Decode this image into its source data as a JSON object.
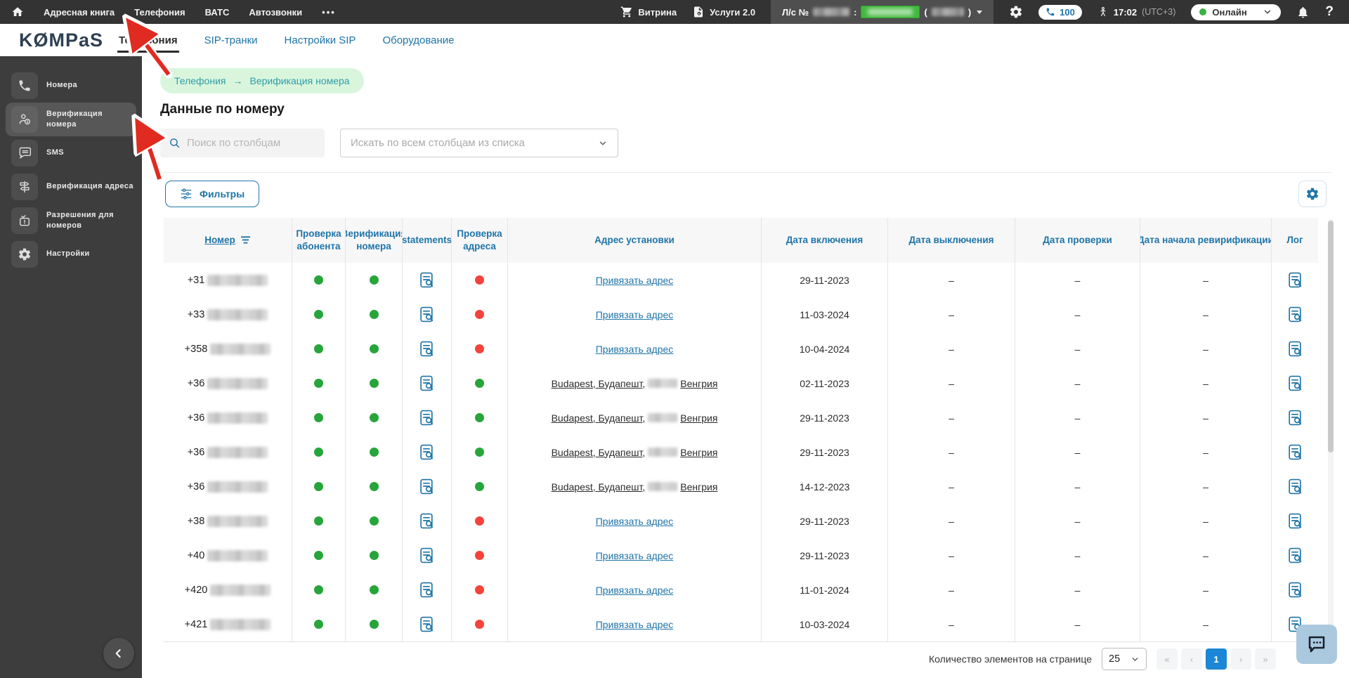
{
  "topbar": {
    "nav": [
      "Адресная книга",
      "Телефония",
      "ВАТС",
      "Автозвонки"
    ],
    "more_dots": "•••",
    "showcase": "Витрина",
    "services": "Услуги 2.0",
    "account_prefix": "Л/с №",
    "account_colon": ":",
    "paren_open": "(",
    "paren_close": ")",
    "phone_count": "100",
    "time": "17:02",
    "utc": "(UTC+3)",
    "status": "Онлайн",
    "help": "?"
  },
  "header": {
    "logo": "KØMPaS",
    "tabs": [
      {
        "label": "Телефония",
        "active": true
      },
      {
        "label": "SIP-транки",
        "active": false
      },
      {
        "label": "Настройки SIP",
        "active": false
      },
      {
        "label": "Оборудование",
        "active": false
      }
    ]
  },
  "sidebar": {
    "items": [
      {
        "label": "Номера",
        "icon": "phone-icon",
        "active": false
      },
      {
        "label": "Верификация номера",
        "icon": "person-info-icon",
        "active": true
      },
      {
        "label": "SMS",
        "icon": "sms-icon",
        "active": false
      },
      {
        "label": "Верификация адреса",
        "icon": "signpost-icon",
        "active": false
      },
      {
        "label": "Разрешения для номеров",
        "icon": "calendar-check-icon",
        "active": false
      },
      {
        "label": "Настройки",
        "icon": "gear-icon",
        "active": false
      }
    ]
  },
  "breadcrumb": {
    "parent": "Телефония",
    "separator": "→",
    "current": "Верификация номера"
  },
  "page": {
    "title": "Данные по номеру"
  },
  "toolbar": {
    "search_placeholder": "Поиск по столбцам",
    "columns_select_placeholder": "Искать по всем столбцам из списка",
    "filters_label": "Фильтры"
  },
  "table": {
    "columns": [
      "Номер",
      "Проверка абонента",
      "Верификация номера",
      "statements",
      "Проверка адреса",
      "Адрес установки",
      "Дата включения",
      "Дата выключения",
      "Дата проверки",
      "Дата начала ревирификации",
      "Лог"
    ],
    "link_label": "Привязать адрес",
    "rows": [
      {
        "prefix": "+31",
        "subscriber_check": "green",
        "number_verification": "green",
        "address_check": "red",
        "address_type": "link",
        "date_enabled": "29-11-2023",
        "date_disabled": "–",
        "date_checked": "–",
        "date_reverification": "–"
      },
      {
        "prefix": "+33",
        "subscriber_check": "green",
        "number_verification": "green",
        "address_check": "red",
        "address_type": "link",
        "date_enabled": "11-03-2024",
        "date_disabled": "–",
        "date_checked": "–",
        "date_reverification": "–"
      },
      {
        "prefix": "+358",
        "subscriber_check": "green",
        "number_verification": "green",
        "address_check": "red",
        "address_type": "link",
        "date_enabled": "10-04-2024",
        "date_disabled": "–",
        "date_checked": "–",
        "date_reverification": "–"
      },
      {
        "prefix": "+36",
        "subscriber_check": "green",
        "number_verification": "green",
        "address_check": "green",
        "address_type": "text",
        "address_pre": "Budapest, Будапешт,",
        "address_post": "Венгрия",
        "date_enabled": "02-11-2023",
        "date_disabled": "–",
        "date_checked": "–",
        "date_reverification": "–"
      },
      {
        "prefix": "+36",
        "subscriber_check": "green",
        "number_verification": "green",
        "address_check": "green",
        "address_type": "text",
        "address_pre": "Budapest, Будапешт,",
        "address_post": "Венгрия",
        "date_enabled": "29-11-2023",
        "date_disabled": "–",
        "date_checked": "–",
        "date_reverification": "–"
      },
      {
        "prefix": "+36",
        "subscriber_check": "green",
        "number_verification": "green",
        "address_check": "green",
        "address_type": "text",
        "address_pre": "Budapest, Будапешт,",
        "address_post": "Венгрия",
        "date_enabled": "29-11-2023",
        "date_disabled": "–",
        "date_checked": "–",
        "date_reverification": "–"
      },
      {
        "prefix": "+36",
        "subscriber_check": "green",
        "number_verification": "green",
        "address_check": "green",
        "address_type": "text",
        "address_pre": "Budapest, Будапешт,",
        "address_post": "Венгрия",
        "date_enabled": "14-12-2023",
        "date_disabled": "–",
        "date_checked": "–",
        "date_reverification": "–"
      },
      {
        "prefix": "+38",
        "subscriber_check": "green",
        "number_verification": "green",
        "address_check": "red",
        "address_type": "link",
        "date_enabled": "29-11-2023",
        "date_disabled": "–",
        "date_checked": "–",
        "date_reverification": "–"
      },
      {
        "prefix": "+40",
        "subscriber_check": "green",
        "number_verification": "green",
        "address_check": "red",
        "address_type": "link",
        "date_enabled": "29-11-2023",
        "date_disabled": "–",
        "date_checked": "–",
        "date_reverification": "–"
      },
      {
        "prefix": "+420",
        "subscriber_check": "green",
        "number_verification": "green",
        "address_check": "red",
        "address_type": "link",
        "date_enabled": "11-01-2024",
        "date_disabled": "–",
        "date_checked": "–",
        "date_reverification": "–"
      },
      {
        "prefix": "+421",
        "subscriber_check": "green",
        "number_verification": "green",
        "address_check": "red",
        "address_type": "link",
        "date_enabled": "10-03-2024",
        "date_disabled": "–",
        "date_checked": "–",
        "date_reverification": "–"
      }
    ]
  },
  "pagination": {
    "label": "Количество элементов на странице",
    "page_size": "25",
    "first": "«",
    "prev": "‹",
    "page": "1",
    "next": "›",
    "last": "»"
  },
  "colors": {
    "accent": "#1e74a8",
    "status_green": "#27a53b",
    "status_red": "#f5423b",
    "breadcrumb_bg": "#d9f6dd",
    "annotation_red": "#e02b20"
  }
}
